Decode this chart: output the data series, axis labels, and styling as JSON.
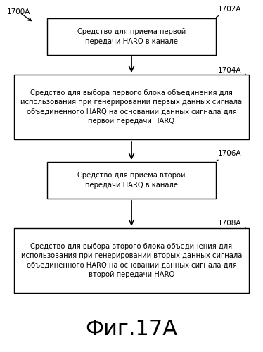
{
  "title": "Фиг.17А",
  "label_1700A": "1700А",
  "label_1702A": "1702А",
  "label_1704A": "1704А",
  "label_1706A": "1706А",
  "label_1708A": "1708А",
  "box1_text": "Средство для приема первой\nпередачи HARQ в канале",
  "box2_text": "Средство для выбора первого блока объединения для\nиспользования при генерировании первых данных сигнала\nобъединенного HARQ на основании данных сигнала для\nпервой передачи HARQ",
  "box3_text": "Средство для приема второй\nпередачи HARQ в канале",
  "box4_text": "Средство для выбора второго блока объединения для\nиспользования при генерировании вторых данных сигнала\nобъединенного HARQ на основании данных сигнала для\nвторой передачи HARQ",
  "bg_color": "#ffffff",
  "box_facecolor": "#ffffff",
  "box_edgecolor": "#000000",
  "text_color": "#000000",
  "arrow_color": "#000000",
  "font_size": 7.2,
  "title_font_size": 22,
  "label_font_size": 7.5,
  "fig_width": 3.74,
  "fig_height": 5.0,
  "dpi": 100
}
